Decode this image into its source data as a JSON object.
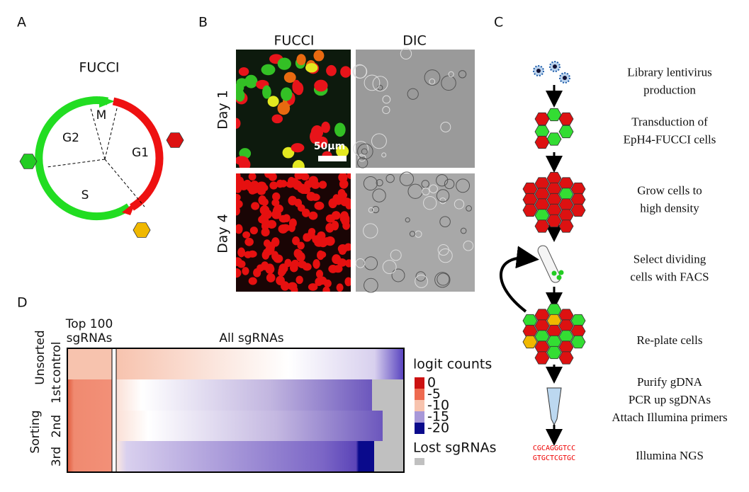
{
  "panel_a": {
    "label": "A",
    "title": "FUCCI",
    "phases": [
      "M",
      "G2",
      "G1",
      "S"
    ]
  },
  "panel_b": {
    "label": "B",
    "columns": [
      "FUCCI",
      "DIC"
    ],
    "rows": [
      "Day 1",
      "Day 4"
    ],
    "scale_bar": "50μm"
  },
  "panel_c": {
    "label": "C",
    "steps": [
      [
        "Library lentivirus",
        "production"
      ],
      [
        "Transduction of",
        "EpH4-FUCCI cells"
      ],
      [
        "Grow cells to",
        "high density"
      ],
      [
        "Select dividing",
        "cells with FACS"
      ],
      [
        "Re-plate cells"
      ],
      [
        "Purify gDNA",
        "PCR up sgDNAs",
        "Attach Illumina primers"
      ],
      [
        "Illumina NGS"
      ]
    ],
    "sequence": [
      "CGCAGGGTCC",
      "GTGCTCGTGC"
    ]
  },
  "panel_d": {
    "label": "D",
    "top_header": [
      "Top 100",
      "sgRNAs"
    ],
    "all_header": "All sgRNAs",
    "groups": [
      {
        "name": "Unsorted",
        "rows": [
          "control"
        ]
      },
      {
        "name": "Sorting",
        "rows": [
          "1st",
          "2nd",
          "3rd"
        ]
      }
    ],
    "legend": {
      "title": "logit counts",
      "ticks": [
        0,
        -5,
        -10,
        -15,
        -20
      ],
      "lost": "Lost sgRNAs"
    }
  }
}
